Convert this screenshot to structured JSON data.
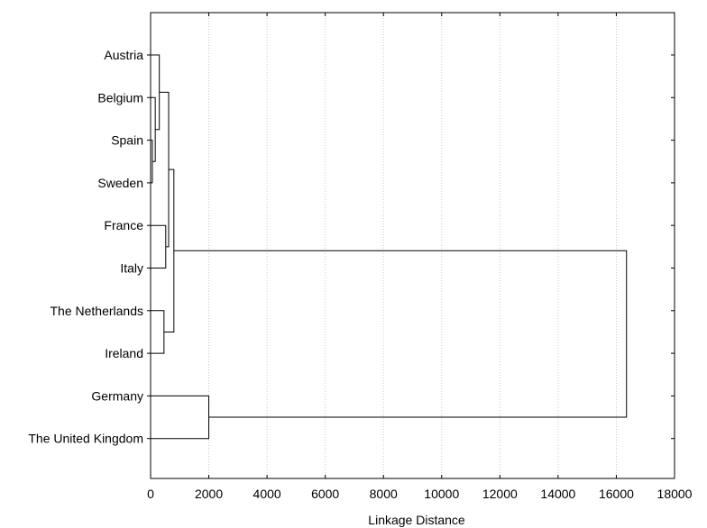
{
  "chart_data": {
    "type": "dendrogram",
    "orientation": "horizontal",
    "xlabel": "Linkage Distance",
    "xlim": [
      0,
      18000
    ],
    "x_ticks": [
      0,
      2000,
      4000,
      6000,
      8000,
      10000,
      12000,
      14000,
      16000,
      18000
    ],
    "grid": "vertical-dotted",
    "leaves": [
      "Austria",
      "Belgium",
      "Spain",
      "Sweden",
      "France",
      "Italy",
      "The Netherlands",
      "Ireland",
      "Germany",
      "The United Kingdom"
    ],
    "merges": [
      {
        "a": "Spain",
        "b": "Sweden",
        "distance": 60
      },
      {
        "a": "Belgium",
        "b": [
          "Spain",
          "Sweden"
        ],
        "distance": 160
      },
      {
        "a": "Austria",
        "b": [
          "Belgium",
          "Spain",
          "Sweden"
        ],
        "distance": 300
      },
      {
        "a": "France",
        "b": "Italy",
        "distance": 520
      },
      {
        "a": [
          "Austria",
          "Belgium",
          "Spain",
          "Sweden"
        ],
        "b": [
          "France",
          "Italy"
        ],
        "distance": 620
      },
      {
        "a": "The Netherlands",
        "b": "Ireland",
        "distance": 460
      },
      {
        "a": [
          "Austria",
          "Belgium",
          "Spain",
          "Sweden",
          "France",
          "Italy"
        ],
        "b": [
          "The Netherlands",
          "Ireland"
        ],
        "distance": 800
      },
      {
        "a": "Germany",
        "b": "The United Kingdom",
        "distance": 2000
      },
      {
        "a": [
          "Austria",
          "Belgium",
          "Spain",
          "Sweden",
          "France",
          "Italy",
          "The Netherlands",
          "Ireland"
        ],
        "b": [
          "Germany",
          "The United Kingdom"
        ],
        "distance": 16350
      }
    ]
  }
}
